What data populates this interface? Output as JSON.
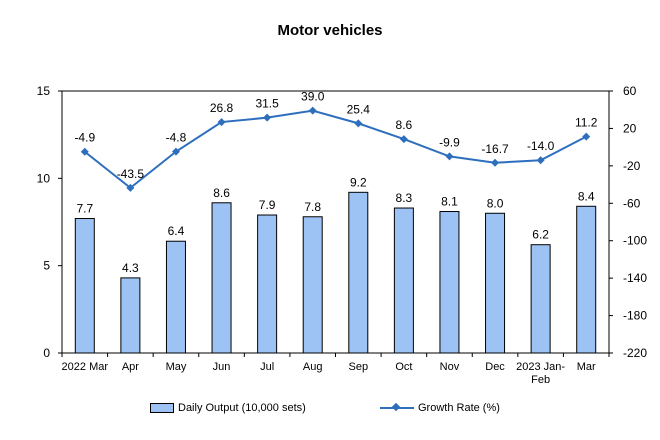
{
  "chart_data": {
    "type": "bar+line",
    "title": "Motor vehicles",
    "categories": [
      "2022 Mar",
      "Apr",
      "May",
      "Jun",
      "Jul",
      "Aug",
      "Sep",
      "Oct",
      "Nov",
      "Dec",
      "2023 Jan-\nFeb",
      "Mar"
    ],
    "series": [
      {
        "name": "Daily Output (10,000 sets)",
        "type": "bar",
        "axis": "left",
        "values": [
          7.7,
          4.3,
          6.4,
          8.6,
          7.9,
          7.8,
          9.2,
          8.3,
          8.1,
          8.0,
          6.2,
          8.4
        ],
        "labels": [
          "7.7",
          "4.3",
          "6.4",
          "8.6",
          "7.9",
          "7.8",
          "9.2",
          "8.3",
          "8.1",
          "8.0",
          "6.2",
          "8.4"
        ]
      },
      {
        "name": "Growth Rate (%)",
        "type": "line",
        "axis": "right",
        "values": [
          -4.9,
          -43.5,
          -4.8,
          26.8,
          31.5,
          39.0,
          25.4,
          8.6,
          -9.9,
          -16.7,
          -14.0,
          11.2
        ],
        "labels": [
          "-4.9",
          "-43.5",
          "-4.8",
          "26.8",
          "31.5",
          "39.0",
          "25.4",
          "8.6",
          "-9.9",
          "-16.7",
          "-14.0",
          "11.2"
        ]
      }
    ],
    "y_left": {
      "ylim": [
        0,
        15
      ],
      "ticks": [
        "0",
        "5",
        "10",
        "15"
      ]
    },
    "y_right": {
      "ylim": [
        -220,
        60
      ],
      "ticks": [
        "-220",
        "-180",
        "-140",
        "-100",
        "-60",
        "-20",
        "20",
        "60"
      ]
    },
    "grid": false,
    "legend": "bottom",
    "colors": {
      "bar_fill": "#9dc3f5",
      "bar_stroke": "#000000",
      "line": "#2e6fbd"
    }
  }
}
